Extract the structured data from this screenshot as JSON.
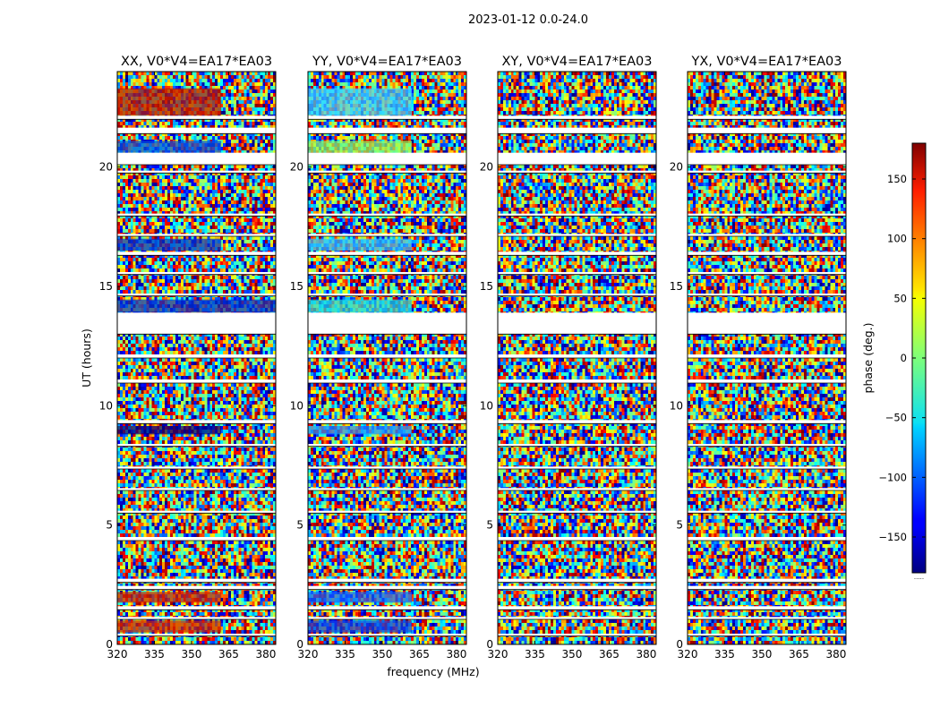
{
  "figure": {
    "suptitle": "2023-01-12 0.0-24.0"
  },
  "chart_data": [
    {
      "type": "heatmap",
      "title": "XX, V0*V4=EA17*EA03",
      "xlabel": "",
      "ylabel": "UT (hours)",
      "xlim": [
        320,
        384
      ],
      "ylim": [
        0,
        24
      ],
      "x_ticks": [
        320,
        335,
        350,
        365,
        380
      ],
      "y_ticks": [
        0,
        5,
        10,
        15,
        20
      ],
      "flagged_ut_ranges": [
        [
          0.35,
          0.45
        ],
        [
          1.05,
          1.15
        ],
        [
          1.45,
          1.6
        ],
        [
          2.3,
          2.45
        ],
        [
          2.6,
          2.75
        ],
        [
          4.35,
          4.5
        ],
        [
          5.5,
          5.6
        ],
        [
          6.45,
          6.55
        ],
        [
          7.35,
          7.45
        ],
        [
          8.3,
          8.4
        ],
        [
          9.25,
          9.4
        ],
        [
          10.95,
          11.1
        ],
        [
          12.0,
          12.15
        ],
        [
          13.0,
          13.9
        ],
        [
          14.6,
          14.7
        ],
        [
          15.5,
          15.6
        ],
        [
          16.3,
          16.45
        ],
        [
          17.1,
          17.2
        ],
        [
          17.95,
          18.05
        ],
        [
          19.75,
          19.85
        ],
        [
          20.1,
          20.6
        ],
        [
          21.4,
          21.65
        ],
        [
          22.0,
          22.15
        ]
      ],
      "color_regions": [
        {
          "ut": [
            0.5,
            1.0
          ],
          "f_max": 362,
          "color": "#cc2200"
        },
        {
          "ut": [
            1.75,
            2.2
          ],
          "f_max": 362,
          "color": "#cc2200"
        },
        {
          "ut": [
            8.8,
            9.15
          ],
          "f_max": 362,
          "color": "#000080"
        },
        {
          "ut": [
            13.9,
            14.45
          ],
          "f_max": 384,
          "color": "#0030cc"
        },
        {
          "ut": [
            16.5,
            17.0
          ],
          "f_max": 362,
          "color": "#0030cc"
        },
        {
          "ut": [
            20.6,
            21.1
          ],
          "f_max": 362,
          "color": "#0050e0"
        },
        {
          "ut": [
            22.15,
            23.3
          ],
          "f_max": 362,
          "color": "#b81a00"
        }
      ]
    },
    {
      "type": "heatmap",
      "title": "YY, V0*V4=EA17*EA03",
      "xlabel": "frequency (MHz)",
      "ylabel": "",
      "xlim": [
        320,
        384
      ],
      "ylim": [
        0,
        24
      ],
      "x_ticks": [
        320,
        335,
        350,
        365,
        380
      ],
      "y_ticks": [
        0,
        5,
        10,
        15,
        20
      ],
      "flagged_ut_ranges": [
        [
          0.35,
          0.45
        ],
        [
          1.05,
          1.15
        ],
        [
          1.45,
          1.6
        ],
        [
          2.3,
          2.45
        ],
        [
          2.6,
          2.75
        ],
        [
          4.35,
          4.5
        ],
        [
          5.5,
          5.6
        ],
        [
          6.45,
          6.55
        ],
        [
          7.35,
          7.45
        ],
        [
          8.3,
          8.4
        ],
        [
          9.25,
          9.4
        ],
        [
          10.95,
          11.1
        ],
        [
          12.0,
          12.15
        ],
        [
          13.0,
          13.9
        ],
        [
          14.6,
          14.7
        ],
        [
          15.5,
          15.6
        ],
        [
          16.3,
          16.45
        ],
        [
          17.1,
          17.2
        ],
        [
          17.95,
          18.05
        ],
        [
          19.75,
          19.85
        ],
        [
          20.1,
          20.6
        ],
        [
          21.4,
          21.65
        ],
        [
          22.0,
          22.15
        ]
      ],
      "color_regions": [
        {
          "ut": [
            0.5,
            1.0
          ],
          "f_max": 362,
          "color": "#1040e0"
        },
        {
          "ut": [
            1.75,
            2.2
          ],
          "f_max": 362,
          "color": "#1060ff"
        },
        {
          "ut": [
            8.8,
            9.15
          ],
          "f_max": 362,
          "color": "#2090ff"
        },
        {
          "ut": [
            13.9,
            14.45
          ],
          "f_max": 362,
          "color": "#20d8e0"
        },
        {
          "ut": [
            16.5,
            17.0
          ],
          "f_max": 362,
          "color": "#30c0ff"
        },
        {
          "ut": [
            20.6,
            21.1
          ],
          "f_max": 362,
          "color": "#90ff60"
        },
        {
          "ut": [
            22.15,
            23.3
          ],
          "f_max": 362,
          "color": "#40d0ff"
        }
      ]
    },
    {
      "type": "heatmap",
      "title": "XY, V0*V4=EA17*EA03",
      "xlabel": "",
      "ylabel": "",
      "xlim": [
        320,
        384
      ],
      "ylim": [
        0,
        24
      ],
      "x_ticks": [
        320,
        335,
        350,
        365,
        380
      ],
      "y_ticks": [
        0,
        5,
        10,
        15,
        20
      ],
      "flagged_ut_ranges": [
        [
          0.35,
          0.45
        ],
        [
          1.05,
          1.15
        ],
        [
          1.45,
          1.6
        ],
        [
          2.3,
          2.45
        ],
        [
          2.6,
          2.75
        ],
        [
          4.35,
          4.5
        ],
        [
          5.5,
          5.6
        ],
        [
          6.45,
          6.55
        ],
        [
          7.35,
          7.45
        ],
        [
          8.3,
          8.4
        ],
        [
          9.25,
          9.4
        ],
        [
          10.95,
          11.1
        ],
        [
          12.0,
          12.15
        ],
        [
          13.0,
          13.9
        ],
        [
          14.6,
          14.7
        ],
        [
          15.5,
          15.6
        ],
        [
          16.3,
          16.45
        ],
        [
          17.1,
          17.2
        ],
        [
          17.95,
          18.05
        ],
        [
          19.75,
          19.85
        ],
        [
          20.1,
          20.6
        ],
        [
          21.4,
          21.65
        ],
        [
          22.0,
          22.15
        ]
      ],
      "color_regions": []
    },
    {
      "type": "heatmap",
      "title": "YX, V0*V4=EA17*EA03",
      "xlabel": "",
      "ylabel": "",
      "xlim": [
        320,
        384
      ],
      "ylim": [
        0,
        24
      ],
      "x_ticks": [
        320,
        335,
        350,
        365,
        380
      ],
      "y_ticks": [
        0,
        5,
        10,
        15,
        20
      ],
      "flagged_ut_ranges": [
        [
          0.35,
          0.45
        ],
        [
          1.05,
          1.15
        ],
        [
          1.45,
          1.6
        ],
        [
          2.3,
          2.45
        ],
        [
          2.6,
          2.75
        ],
        [
          4.35,
          4.5
        ],
        [
          5.5,
          5.6
        ],
        [
          6.45,
          6.55
        ],
        [
          7.35,
          7.45
        ],
        [
          8.3,
          8.4
        ],
        [
          9.25,
          9.4
        ],
        [
          10.95,
          11.1
        ],
        [
          12.0,
          12.15
        ],
        [
          13.0,
          13.9
        ],
        [
          14.6,
          14.7
        ],
        [
          15.5,
          15.6
        ],
        [
          16.3,
          16.45
        ],
        [
          17.1,
          17.2
        ],
        [
          17.95,
          18.05
        ],
        [
          19.75,
          19.85
        ],
        [
          20.1,
          20.6
        ],
        [
          21.4,
          21.65
        ],
        [
          22.0,
          22.15
        ]
      ],
      "color_regions": []
    }
  ],
  "colorbar": {
    "label": "phase (deg.)",
    "range": [
      -180,
      180
    ],
    "ticks": [
      150,
      100,
      50,
      0,
      -50,
      -100,
      -150
    ],
    "tick_labels": [
      "150",
      "100",
      "50",
      "0",
      "−50",
      "−100",
      "−150"
    ],
    "colormap": "jet",
    "footer": "....."
  }
}
